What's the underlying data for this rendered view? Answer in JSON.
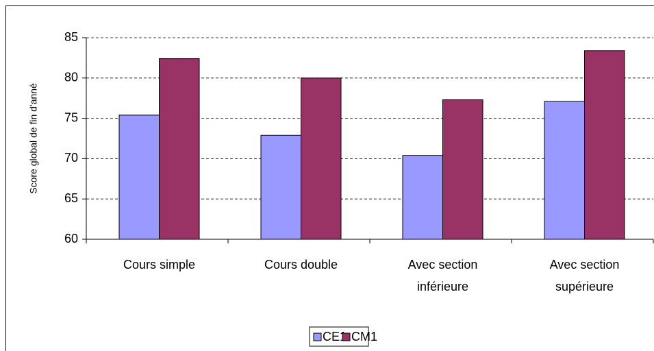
{
  "chart_data": {
    "type": "bar",
    "y_axis_label": "Score global de fin d'anné",
    "categories": [
      "Cours simple",
      "Cours double",
      "Avec section\ninférieure",
      "Avec section\nsupérieure"
    ],
    "series": [
      {
        "name": "CE1",
        "color": "#9999ff",
        "values": [
          75.4,
          72.9,
          70.4,
          77.1
        ]
      },
      {
        "name": "CM1",
        "color": "#993366",
        "values": [
          82.4,
          80.0,
          77.3,
          83.4
        ]
      }
    ],
    "ylim": [
      60,
      85
    ],
    "yticks": [
      60,
      65,
      70,
      75,
      80,
      85
    ],
    "grid": true,
    "legend": "bottom"
  }
}
